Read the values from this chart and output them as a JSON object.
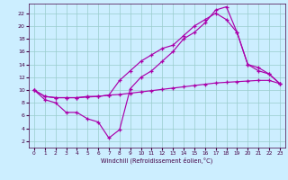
{
  "xlabel": "Windchill (Refroidissement éolien,°C)",
  "background_color": "#cceeff",
  "line_color": "#aa00aa",
  "grid_color": "#99cccc",
  "xlim": [
    -0.5,
    23.5
  ],
  "ylim": [
    1,
    23.5
  ],
  "xticks": [
    0,
    1,
    2,
    3,
    4,
    5,
    6,
    7,
    8,
    9,
    10,
    11,
    12,
    13,
    14,
    15,
    16,
    17,
    18,
    19,
    20,
    21,
    22,
    23
  ],
  "yticks": [
    2,
    4,
    6,
    8,
    10,
    12,
    14,
    16,
    18,
    20,
    22
  ],
  "line1_x": [
    0,
    1,
    2,
    3,
    4,
    5,
    6,
    7,
    8,
    9,
    10,
    11,
    12,
    13,
    14,
    15,
    16,
    17,
    18,
    19,
    20,
    21,
    22,
    23
  ],
  "line1_y": [
    10,
    8.5,
    8.0,
    6.5,
    6.5,
    5.5,
    5.0,
    2.5,
    3.8,
    10.2,
    12,
    13,
    14.5,
    16,
    18,
    19,
    20.5,
    22.5,
    23.0,
    19.0,
    14.0,
    13.0,
    12.5,
    11.0
  ],
  "line2_x": [
    0,
    1,
    2,
    3,
    4,
    5,
    6,
    7,
    8,
    9,
    10,
    11,
    12,
    13,
    14,
    15,
    16,
    17,
    18,
    19,
    20,
    21,
    22,
    23
  ],
  "line2_y": [
    10,
    9.0,
    8.8,
    8.8,
    8.8,
    8.9,
    9.0,
    9.2,
    9.3,
    9.5,
    9.7,
    9.9,
    10.1,
    10.3,
    10.5,
    10.7,
    10.9,
    11.1,
    11.2,
    11.3,
    11.4,
    11.5,
    11.5,
    11.0
  ],
  "line3_x": [
    0,
    1,
    2,
    3,
    4,
    5,
    6,
    7,
    8,
    9,
    10,
    11,
    12,
    13,
    14,
    15,
    16,
    17,
    18,
    19,
    20,
    21,
    22,
    23
  ],
  "line3_y": [
    10,
    9.0,
    8.8,
    8.8,
    8.8,
    9.0,
    9.0,
    9.2,
    11.5,
    13.0,
    14.5,
    15.5,
    16.5,
    17.0,
    18.5,
    20.0,
    21.0,
    22.0,
    21.0,
    19.0,
    14.0,
    13.5,
    12.5,
    11.0
  ]
}
